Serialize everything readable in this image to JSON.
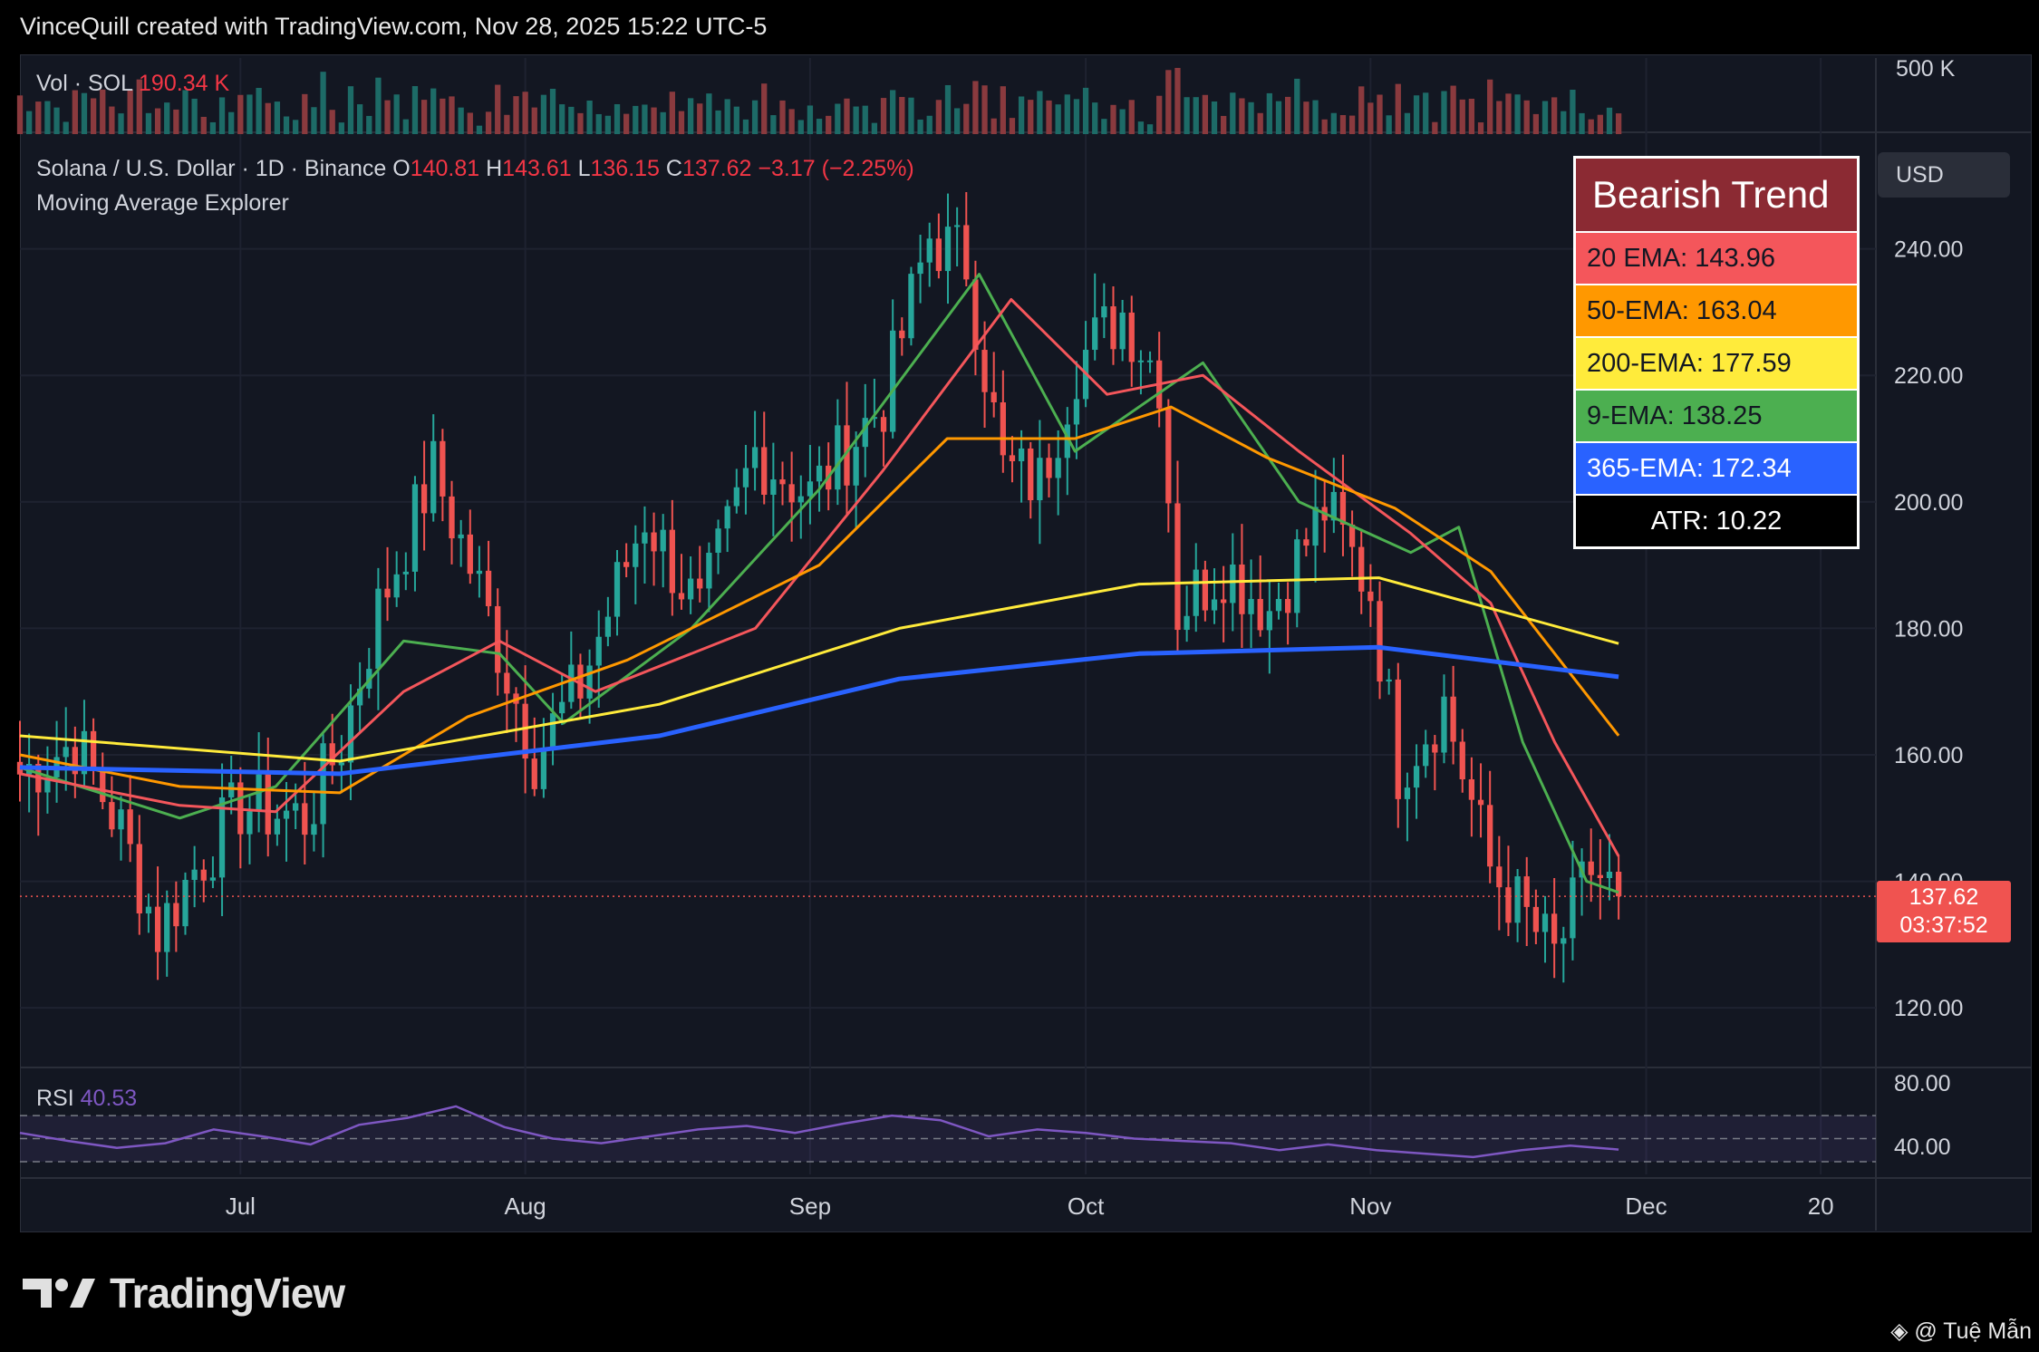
{
  "header": {
    "credit": "VinceQuill created with TradingView.com, Nov 28, 2025 15:22 UTC-5"
  },
  "volume": {
    "label": "Vol · SOL",
    "value": "190.34 K",
    "scale_label": "500 K"
  },
  "legend": {
    "symbol": "Solana / U.S. Dollar · 1D · Binance",
    "o_label": "O",
    "o": "140.81",
    "h_label": "H",
    "h": "143.61",
    "l_label": "L",
    "l": "136.15",
    "c_label": "C",
    "c": "137.62",
    "change": "−3.17 (−2.25%)",
    "indicator_title": "Moving Average Explorer"
  },
  "trend_table": {
    "title": "Bearish Trend",
    "ema20": "20 EMA: 143.96",
    "ema50": "50-EMA: 163.04",
    "ema200": "200-EMA: 177.59",
    "ema9": "9-EMA: 138.25",
    "ema365": "365-EMA: 172.34",
    "atr": "ATR: 10.22"
  },
  "currency": "USD",
  "price_badge": {
    "price": "137.62",
    "countdown": "03:37:52"
  },
  "rsi": {
    "label": "RSI",
    "value": "40.53",
    "upper_label": "80.00",
    "lower_label": "40.00"
  },
  "brand": {
    "name": "TradingView"
  },
  "watermark": "@ Tuệ Mẫn",
  "colors": {
    "bull": "#26a69a",
    "bear": "#ef5350",
    "ema9": "#4caf50",
    "ema20": "#f4565b",
    "ema50": "#ff9800",
    "ema200": "#ffeb3b",
    "ema365": "#2962ff",
    "rsi": "#7e57c2"
  },
  "chart_data": {
    "type": "candlestick",
    "title": "Solana / U.S. Dollar · 1D · Binance",
    "y_ticks": [
      "120.00",
      "140.00",
      "160.00",
      "180.00",
      "200.00",
      "220.00",
      "240.00"
    ],
    "ylim": [
      113,
      256
    ],
    "x_ticks": [
      "Jul",
      "Aug",
      "Sep",
      "Oct",
      "Nov",
      "Dec",
      "20"
    ],
    "x_range": [
      "2025-06-07",
      "2025-12-26"
    ],
    "last_price": 137.62,
    "ohlc_anchors": [
      {
        "date": "2025-06-07",
        "close": 157
      },
      {
        "date": "2025-06-13",
        "close": 162
      },
      {
        "date": "2025-06-18",
        "close": 148
      },
      {
        "date": "2025-06-22",
        "close": 132
      },
      {
        "date": "2025-06-26",
        "close": 142
      },
      {
        "date": "2025-07-01",
        "close": 152
      },
      {
        "date": "2025-07-08",
        "close": 150
      },
      {
        "date": "2025-07-12",
        "close": 162
      },
      {
        "date": "2025-07-16",
        "close": 183
      },
      {
        "date": "2025-07-22",
        "close": 205
      },
      {
        "date": "2025-07-27",
        "close": 186
      },
      {
        "date": "2025-08-02",
        "close": 160
      },
      {
        "date": "2025-08-07",
        "close": 171
      },
      {
        "date": "2025-08-14",
        "close": 198
      },
      {
        "date": "2025-08-20",
        "close": 182
      },
      {
        "date": "2025-08-26",
        "close": 208
      },
      {
        "date": "2025-09-01",
        "close": 201
      },
      {
        "date": "2025-09-09",
        "close": 216
      },
      {
        "date": "2025-09-14",
        "close": 242
      },
      {
        "date": "2025-09-18",
        "close": 238
      },
      {
        "date": "2025-09-22",
        "close": 205
      },
      {
        "date": "2025-09-26",
        "close": 203
      },
      {
        "date": "2025-09-30",
        "close": 222
      },
      {
        "date": "2025-10-05",
        "close": 230
      },
      {
        "date": "2025-10-09",
        "close": 220
      },
      {
        "date": "2025-10-11",
        "close": 183
      },
      {
        "date": "2025-10-16",
        "close": 190
      },
      {
        "date": "2025-10-21",
        "close": 183
      },
      {
        "date": "2025-10-27",
        "close": 199
      },
      {
        "date": "2025-11-01",
        "close": 186
      },
      {
        "date": "2025-11-04",
        "close": 158
      },
      {
        "date": "2025-11-09",
        "close": 168
      },
      {
        "date": "2025-11-14",
        "close": 142
      },
      {
        "date": "2025-11-18",
        "close": 134
      },
      {
        "date": "2025-11-21",
        "close": 128
      },
      {
        "date": "2025-11-25",
        "close": 142
      },
      {
        "date": "2025-11-28",
        "close": 137.62
      }
    ],
    "series": [
      {
        "name": "9-EMA",
        "values": [
          [
            0,
            158
          ],
          [
            0.1,
            150
          ],
          [
            0.16,
            155
          ],
          [
            0.24,
            178
          ],
          [
            0.3,
            176
          ],
          [
            0.34,
            165
          ],
          [
            0.42,
            180
          ],
          [
            0.5,
            202
          ],
          [
            0.6,
            236
          ],
          [
            0.66,
            208
          ],
          [
            0.74,
            222
          ],
          [
            0.8,
            200
          ],
          [
            0.87,
            192
          ],
          [
            0.9,
            196
          ],
          [
            0.94,
            162
          ],
          [
            0.98,
            140
          ],
          [
            1,
            138.25
          ]
        ]
      },
      {
        "name": "20 EMA",
        "values": [
          [
            0,
            157
          ],
          [
            0.1,
            152
          ],
          [
            0.16,
            151
          ],
          [
            0.24,
            170
          ],
          [
            0.3,
            178
          ],
          [
            0.36,
            170
          ],
          [
            0.46,
            180
          ],
          [
            0.54,
            205
          ],
          [
            0.62,
            232
          ],
          [
            0.68,
            217
          ],
          [
            0.74,
            220
          ],
          [
            0.8,
            208
          ],
          [
            0.87,
            195
          ],
          [
            0.92,
            184
          ],
          [
            0.96,
            162
          ],
          [
            1,
            143.96
          ]
        ]
      },
      {
        "name": "50-EMA",
        "values": [
          [
            0,
            160
          ],
          [
            0.1,
            155
          ],
          [
            0.2,
            154
          ],
          [
            0.28,
            166
          ],
          [
            0.38,
            175
          ],
          [
            0.5,
            190
          ],
          [
            0.58,
            210
          ],
          [
            0.66,
            210
          ],
          [
            0.72,
            215
          ],
          [
            0.78,
            207
          ],
          [
            0.86,
            199
          ],
          [
            0.92,
            189
          ],
          [
            1,
            163.04
          ]
        ]
      },
      {
        "name": "200-EMA",
        "values": [
          [
            0,
            163
          ],
          [
            0.2,
            159
          ],
          [
            0.4,
            168
          ],
          [
            0.55,
            180
          ],
          [
            0.7,
            187
          ],
          [
            0.85,
            188
          ],
          [
            1,
            177.59
          ]
        ]
      },
      {
        "name": "365-EMA",
        "values": [
          [
            0,
            158
          ],
          [
            0.2,
            157
          ],
          [
            0.4,
            163
          ],
          [
            0.55,
            172
          ],
          [
            0.7,
            176
          ],
          [
            0.85,
            177
          ],
          [
            1,
            172.34
          ]
        ]
      }
    ],
    "rsi_series": [
      55,
      48,
      42,
      46,
      58,
      52,
      45,
      62,
      68,
      78,
      60,
      50,
      46,
      52,
      58,
      61,
      55,
      63,
      70,
      66,
      52,
      58,
      55,
      50,
      48,
      46,
      40,
      45,
      40,
      37,
      34,
      40,
      44,
      40.53
    ]
  }
}
